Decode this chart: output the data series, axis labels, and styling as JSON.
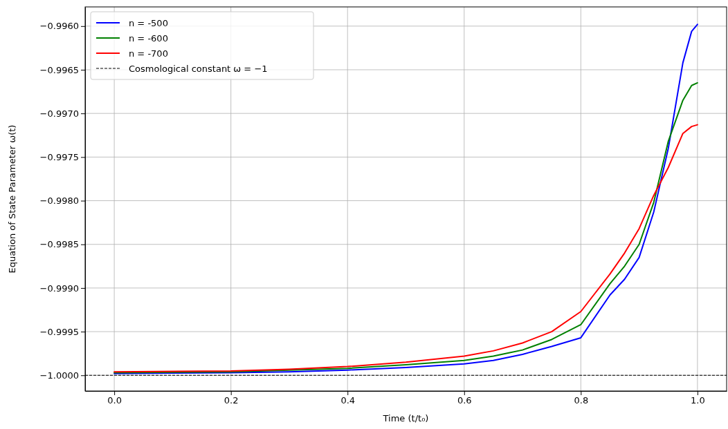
{
  "chart_data": {
    "type": "line",
    "xlabel": "Time (t/t₀)",
    "ylabel": "Equation of State Parameter ω(t)",
    "x": [
      0,
      0.2,
      0.3,
      0.4,
      0.5,
      0.6,
      0.65,
      0.7,
      0.75,
      0.8,
      0.85,
      0.875,
      0.9,
      0.925,
      0.95,
      0.975,
      0.99,
      1.0
    ],
    "series": [
      {
        "name": "n = -500",
        "color": "#0000ff",
        "values": [
          -0.99998,
          -0.99997,
          -0.99996,
          -0.99994,
          -0.99991,
          -0.99987,
          -0.99983,
          -0.99976,
          -0.99967,
          -0.99957,
          -0.99908,
          -0.9989,
          -0.99865,
          -0.99813,
          -0.9974,
          -0.99642,
          -0.99606,
          -0.99598
        ]
      },
      {
        "name": "n = -600",
        "color": "#008000",
        "values": [
          -0.99997,
          -0.99996,
          -0.99994,
          -0.99992,
          -0.99988,
          -0.99983,
          -0.99978,
          -0.99971,
          -0.99959,
          -0.99942,
          -0.99895,
          -0.99875,
          -0.9985,
          -0.99802,
          -0.99732,
          -0.99685,
          -0.99668,
          -0.99665
        ]
      },
      {
        "name": "n = -700",
        "color": "#ff0000",
        "values": [
          -0.99996,
          -0.99995,
          -0.99993,
          -0.9999,
          -0.99985,
          -0.99978,
          -0.99972,
          -0.99963,
          -0.9995,
          -0.99927,
          -0.99884,
          -0.9986,
          -0.99832,
          -0.99794,
          -0.99762,
          -0.99723,
          -0.99715,
          -0.99713
        ]
      }
    ],
    "ref_lines": [
      {
        "axis": "y",
        "value": -1,
        "label": "Cosmological constant ω = −1",
        "color": "#000000",
        "line_style": "dashed"
      }
    ],
    "xlim": [
      -0.05,
      1.05
    ],
    "ylim": [
      -1.00018,
      -0.99578
    ],
    "xticks": [
      {
        "value": 0,
        "label": "0.0"
      },
      {
        "value": 0.2,
        "label": "0.2"
      },
      {
        "value": 0.4,
        "label": "0.4"
      },
      {
        "value": 0.6,
        "label": "0.6"
      },
      {
        "value": 0.8,
        "label": "0.8"
      },
      {
        "value": 1,
        "label": "1.0"
      }
    ],
    "yticks": [
      {
        "value": -1,
        "label": "−1.0000"
      },
      {
        "value": -0.9995,
        "label": "−0.9995"
      },
      {
        "value": -0.999,
        "label": "−0.9990"
      },
      {
        "value": -0.9985,
        "label": "−0.9985"
      },
      {
        "value": -0.998,
        "label": "−0.9980"
      },
      {
        "value": -0.9975,
        "label": "−0.9975"
      },
      {
        "value": -0.997,
        "label": "−0.9970"
      },
      {
        "value": -0.9965,
        "label": "−0.9965"
      },
      {
        "value": -0.996,
        "label": "−0.9960"
      }
    ],
    "grid": true,
    "legend": "top left",
    "line_style": "solid"
  }
}
